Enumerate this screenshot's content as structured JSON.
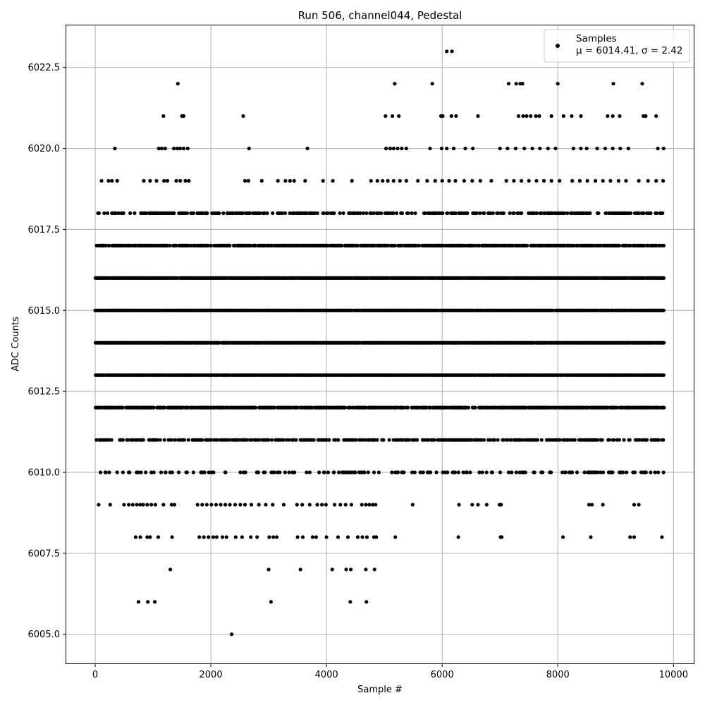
{
  "chart_data": {
    "type": "scatter",
    "title": "Run 506, channel044, Pedestal",
    "xlabel": "Sample #",
    "ylabel": "ADC Counts",
    "xlim": [
      -500,
      10350
    ],
    "ylim": [
      6004.1,
      6023.8
    ],
    "xticks": [
      0,
      2000,
      4000,
      6000,
      8000,
      10000
    ],
    "yticks": [
      6005.0,
      6007.5,
      6010.0,
      6012.5,
      6015.0,
      6017.5,
      6020.0,
      6022.5
    ],
    "xtick_labels": [
      "0",
      "2000",
      "4000",
      "6000",
      "8000",
      "10000"
    ],
    "ytick_labels": [
      "6005.0",
      "6007.5",
      "6010.0",
      "6012.5",
      "6015.0",
      "6017.5",
      "6020.0",
      "6022.5"
    ],
    "grid": true,
    "legend_position": "top-right",
    "marker_color": "#000000",
    "series": [
      {
        "name": "Samples",
        "stats_line": "μ = 6014.41, σ = 2.42",
        "mean": 6014.41,
        "sigma": 2.42,
        "x_range": [
          0,
          9840
        ],
        "dense_levels": [
          6010,
          6011,
          6012,
          6013,
          6014,
          6015,
          6016,
          6017,
          6018
        ],
        "sparse_points": [
          {
            "x": 6080,
            "y": 6023
          },
          {
            "x": 6170,
            "y": 6023
          },
          {
            "x": 1430,
            "y": 6022
          },
          {
            "x": 5180,
            "y": 6022
          },
          {
            "x": 5830,
            "y": 6022
          },
          {
            "x": 7150,
            "y": 6022
          },
          {
            "x": 7280,
            "y": 6022
          },
          {
            "x": 7350,
            "y": 6022
          },
          {
            "x": 7390,
            "y": 6022
          },
          {
            "x": 8000,
            "y": 6022
          },
          {
            "x": 8960,
            "y": 6022
          },
          {
            "x": 9460,
            "y": 6022
          },
          {
            "x": 1180,
            "y": 6021
          },
          {
            "x": 1500,
            "y": 6021
          },
          {
            "x": 1530,
            "y": 6021
          },
          {
            "x": 2560,
            "y": 6021
          },
          {
            "x": 5020,
            "y": 6021
          },
          {
            "x": 5140,
            "y": 6021
          },
          {
            "x": 5250,
            "y": 6021
          },
          {
            "x": 5980,
            "y": 6021
          },
          {
            "x": 6010,
            "y": 6021
          },
          {
            "x": 6160,
            "y": 6021
          },
          {
            "x": 6240,
            "y": 6021
          },
          {
            "x": 6620,
            "y": 6021
          },
          {
            "x": 7320,
            "y": 6021
          },
          {
            "x": 7400,
            "y": 6021
          },
          {
            "x": 7460,
            "y": 6021
          },
          {
            "x": 7530,
            "y": 6021
          },
          {
            "x": 7620,
            "y": 6021
          },
          {
            "x": 7680,
            "y": 6021
          },
          {
            "x": 7890,
            "y": 6021
          },
          {
            "x": 8100,
            "y": 6021
          },
          {
            "x": 8240,
            "y": 6021
          },
          {
            "x": 8400,
            "y": 6021
          },
          {
            "x": 8860,
            "y": 6021
          },
          {
            "x": 8950,
            "y": 6021
          },
          {
            "x": 9070,
            "y": 6021
          },
          {
            "x": 9480,
            "y": 6021
          },
          {
            "x": 9520,
            "y": 6021
          },
          {
            "x": 9700,
            "y": 6021
          },
          {
            "x": 340,
            "y": 6020
          },
          {
            "x": 1100,
            "y": 6020
          },
          {
            "x": 1150,
            "y": 6020
          },
          {
            "x": 1210,
            "y": 6020
          },
          {
            "x": 1360,
            "y": 6020
          },
          {
            "x": 1420,
            "y": 6020
          },
          {
            "x": 1470,
            "y": 6020
          },
          {
            "x": 1530,
            "y": 6020
          },
          {
            "x": 1600,
            "y": 6020
          },
          {
            "x": 2660,
            "y": 6020
          },
          {
            "x": 3670,
            "y": 6020
          },
          {
            "x": 5030,
            "y": 6020
          },
          {
            "x": 5100,
            "y": 6020
          },
          {
            "x": 5160,
            "y": 6020
          },
          {
            "x": 5230,
            "y": 6020
          },
          {
            "x": 5300,
            "y": 6020
          },
          {
            "x": 5380,
            "y": 6020
          },
          {
            "x": 5790,
            "y": 6020
          },
          {
            "x": 5990,
            "y": 6020
          },
          {
            "x": 6080,
            "y": 6020
          },
          {
            "x": 6200,
            "y": 6020
          },
          {
            "x": 6400,
            "y": 6020
          },
          {
            "x": 6530,
            "y": 6020
          },
          {
            "x": 7000,
            "y": 6020
          },
          {
            "x": 7130,
            "y": 6020
          },
          {
            "x": 7270,
            "y": 6020
          },
          {
            "x": 7420,
            "y": 6020
          },
          {
            "x": 7560,
            "y": 6020
          },
          {
            "x": 7690,
            "y": 6020
          },
          {
            "x": 7830,
            "y": 6020
          },
          {
            "x": 7960,
            "y": 6020
          },
          {
            "x": 8270,
            "y": 6020
          },
          {
            "x": 8400,
            "y": 6020
          },
          {
            "x": 8500,
            "y": 6020
          },
          {
            "x": 8680,
            "y": 6020
          },
          {
            "x": 8820,
            "y": 6020
          },
          {
            "x": 8950,
            "y": 6020
          },
          {
            "x": 9080,
            "y": 6020
          },
          {
            "x": 9220,
            "y": 6020
          },
          {
            "x": 9730,
            "y": 6020
          },
          {
            "x": 9830,
            "y": 6020
          },
          {
            "x": 110,
            "y": 6019
          },
          {
            "x": 230,
            "y": 6019
          },
          {
            "x": 290,
            "y": 6019
          },
          {
            "x": 380,
            "y": 6019
          },
          {
            "x": 840,
            "y": 6019
          },
          {
            "x": 950,
            "y": 6019
          },
          {
            "x": 1060,
            "y": 6019
          },
          {
            "x": 1190,
            "y": 6019
          },
          {
            "x": 1250,
            "y": 6019
          },
          {
            "x": 1400,
            "y": 6019
          },
          {
            "x": 1470,
            "y": 6019
          },
          {
            "x": 1560,
            "y": 6019
          },
          {
            "x": 1620,
            "y": 6019
          },
          {
            "x": 2590,
            "y": 6019
          },
          {
            "x": 2650,
            "y": 6019
          },
          {
            "x": 2880,
            "y": 6019
          },
          {
            "x": 3160,
            "y": 6019
          },
          {
            "x": 3290,
            "y": 6019
          },
          {
            "x": 3370,
            "y": 6019
          },
          {
            "x": 3440,
            "y": 6019
          },
          {
            "x": 3630,
            "y": 6019
          },
          {
            "x": 3940,
            "y": 6019
          },
          {
            "x": 4110,
            "y": 6019
          },
          {
            "x": 4440,
            "y": 6019
          },
          {
            "x": 4770,
            "y": 6019
          },
          {
            "x": 4880,
            "y": 6019
          },
          {
            "x": 4970,
            "y": 6019
          },
          {
            "x": 5060,
            "y": 6019
          },
          {
            "x": 5160,
            "y": 6019
          },
          {
            "x": 5270,
            "y": 6019
          },
          {
            "x": 5380,
            "y": 6019
          },
          {
            "x": 5580,
            "y": 6019
          },
          {
            "x": 5740,
            "y": 6019
          },
          {
            "x": 5880,
            "y": 6019
          },
          {
            "x": 6000,
            "y": 6019
          },
          {
            "x": 6120,
            "y": 6019
          },
          {
            "x": 6230,
            "y": 6019
          },
          {
            "x": 6380,
            "y": 6019
          },
          {
            "x": 6520,
            "y": 6019
          },
          {
            "x": 6660,
            "y": 6019
          },
          {
            "x": 6850,
            "y": 6019
          },
          {
            "x": 7110,
            "y": 6019
          },
          {
            "x": 7240,
            "y": 6019
          },
          {
            "x": 7370,
            "y": 6019
          },
          {
            "x": 7500,
            "y": 6019
          },
          {
            "x": 7630,
            "y": 6019
          },
          {
            "x": 7760,
            "y": 6019
          },
          {
            "x": 7890,
            "y": 6019
          },
          {
            "x": 8030,
            "y": 6019
          },
          {
            "x": 8250,
            "y": 6019
          },
          {
            "x": 8380,
            "y": 6019
          },
          {
            "x": 8510,
            "y": 6019
          },
          {
            "x": 8650,
            "y": 6019
          },
          {
            "x": 8780,
            "y": 6019
          },
          {
            "x": 8910,
            "y": 6019
          },
          {
            "x": 9050,
            "y": 6019
          },
          {
            "x": 9180,
            "y": 6019
          },
          {
            "x": 9400,
            "y": 6019
          },
          {
            "x": 9560,
            "y": 6019
          },
          {
            "x": 9700,
            "y": 6019
          },
          {
            "x": 9820,
            "y": 6019
          },
          {
            "x": 60,
            "y": 6009
          },
          {
            "x": 260,
            "y": 6009
          },
          {
            "x": 500,
            "y": 6009
          },
          {
            "x": 580,
            "y": 6009
          },
          {
            "x": 650,
            "y": 6009
          },
          {
            "x": 720,
            "y": 6009
          },
          {
            "x": 780,
            "y": 6009
          },
          {
            "x": 830,
            "y": 6009
          },
          {
            "x": 900,
            "y": 6009
          },
          {
            "x": 970,
            "y": 6009
          },
          {
            "x": 1040,
            "y": 6009
          },
          {
            "x": 1180,
            "y": 6009
          },
          {
            "x": 1320,
            "y": 6009
          },
          {
            "x": 1370,
            "y": 6009
          },
          {
            "x": 1770,
            "y": 6009
          },
          {
            "x": 1850,
            "y": 6009
          },
          {
            "x": 1930,
            "y": 6009
          },
          {
            "x": 2010,
            "y": 6009
          },
          {
            "x": 2090,
            "y": 6009
          },
          {
            "x": 2170,
            "y": 6009
          },
          {
            "x": 2250,
            "y": 6009
          },
          {
            "x": 2330,
            "y": 6009
          },
          {
            "x": 2420,
            "y": 6009
          },
          {
            "x": 2510,
            "y": 6009
          },
          {
            "x": 2590,
            "y": 6009
          },
          {
            "x": 2700,
            "y": 6009
          },
          {
            "x": 2830,
            "y": 6009
          },
          {
            "x": 2950,
            "y": 6009
          },
          {
            "x": 3070,
            "y": 6009
          },
          {
            "x": 3260,
            "y": 6009
          },
          {
            "x": 3490,
            "y": 6009
          },
          {
            "x": 3580,
            "y": 6009
          },
          {
            "x": 3710,
            "y": 6009
          },
          {
            "x": 3840,
            "y": 6009
          },
          {
            "x": 3920,
            "y": 6009
          },
          {
            "x": 3990,
            "y": 6009
          },
          {
            "x": 4140,
            "y": 6009
          },
          {
            "x": 4240,
            "y": 6009
          },
          {
            "x": 4330,
            "y": 6009
          },
          {
            "x": 4430,
            "y": 6009
          },
          {
            "x": 4610,
            "y": 6009
          },
          {
            "x": 4680,
            "y": 6009
          },
          {
            "x": 4740,
            "y": 6009
          },
          {
            "x": 4800,
            "y": 6009
          },
          {
            "x": 4850,
            "y": 6009
          },
          {
            "x": 5490,
            "y": 6009
          },
          {
            "x": 6290,
            "y": 6009
          },
          {
            "x": 6520,
            "y": 6009
          },
          {
            "x": 6620,
            "y": 6009
          },
          {
            "x": 6770,
            "y": 6009
          },
          {
            "x": 6990,
            "y": 6009
          },
          {
            "x": 7020,
            "y": 6009
          },
          {
            "x": 8540,
            "y": 6009
          },
          {
            "x": 8590,
            "y": 6009
          },
          {
            "x": 8780,
            "y": 6009
          },
          {
            "x": 9320,
            "y": 6009
          },
          {
            "x": 9400,
            "y": 6009
          },
          {
            "x": 700,
            "y": 6008
          },
          {
            "x": 780,
            "y": 6008
          },
          {
            "x": 900,
            "y": 6008
          },
          {
            "x": 950,
            "y": 6008
          },
          {
            "x": 1090,
            "y": 6008
          },
          {
            "x": 1330,
            "y": 6008
          },
          {
            "x": 1800,
            "y": 6008
          },
          {
            "x": 1880,
            "y": 6008
          },
          {
            "x": 1960,
            "y": 6008
          },
          {
            "x": 2040,
            "y": 6008
          },
          {
            "x": 2100,
            "y": 6008
          },
          {
            "x": 2200,
            "y": 6008
          },
          {
            "x": 2270,
            "y": 6008
          },
          {
            "x": 2430,
            "y": 6008
          },
          {
            "x": 2540,
            "y": 6008
          },
          {
            "x": 2690,
            "y": 6008
          },
          {
            "x": 2800,
            "y": 6008
          },
          {
            "x": 3010,
            "y": 6008
          },
          {
            "x": 3080,
            "y": 6008
          },
          {
            "x": 3140,
            "y": 6008
          },
          {
            "x": 3500,
            "y": 6008
          },
          {
            "x": 3590,
            "y": 6008
          },
          {
            "x": 3760,
            "y": 6008
          },
          {
            "x": 3820,
            "y": 6008
          },
          {
            "x": 4000,
            "y": 6008
          },
          {
            "x": 4200,
            "y": 6008
          },
          {
            "x": 4370,
            "y": 6008
          },
          {
            "x": 4540,
            "y": 6008
          },
          {
            "x": 4620,
            "y": 6008
          },
          {
            "x": 4700,
            "y": 6008
          },
          {
            "x": 4820,
            "y": 6008
          },
          {
            "x": 4860,
            "y": 6008
          },
          {
            "x": 5190,
            "y": 6008
          },
          {
            "x": 6280,
            "y": 6008
          },
          {
            "x": 7010,
            "y": 6008
          },
          {
            "x": 7030,
            "y": 6008
          },
          {
            "x": 8090,
            "y": 6008
          },
          {
            "x": 8570,
            "y": 6008
          },
          {
            "x": 9250,
            "y": 6008
          },
          {
            "x": 9320,
            "y": 6008
          },
          {
            "x": 9800,
            "y": 6008
          },
          {
            "x": 1300,
            "y": 6007
          },
          {
            "x": 3000,
            "y": 6007
          },
          {
            "x": 3550,
            "y": 6007
          },
          {
            "x": 4100,
            "y": 6007
          },
          {
            "x": 4340,
            "y": 6007
          },
          {
            "x": 4420,
            "y": 6007
          },
          {
            "x": 4680,
            "y": 6007
          },
          {
            "x": 4830,
            "y": 6007
          },
          {
            "x": 750,
            "y": 6006
          },
          {
            "x": 910,
            "y": 6006
          },
          {
            "x": 1030,
            "y": 6006
          },
          {
            "x": 3040,
            "y": 6006
          },
          {
            "x": 4410,
            "y": 6006
          },
          {
            "x": 4690,
            "y": 6006
          },
          {
            "x": 2360,
            "y": 6005
          }
        ]
      }
    ]
  }
}
